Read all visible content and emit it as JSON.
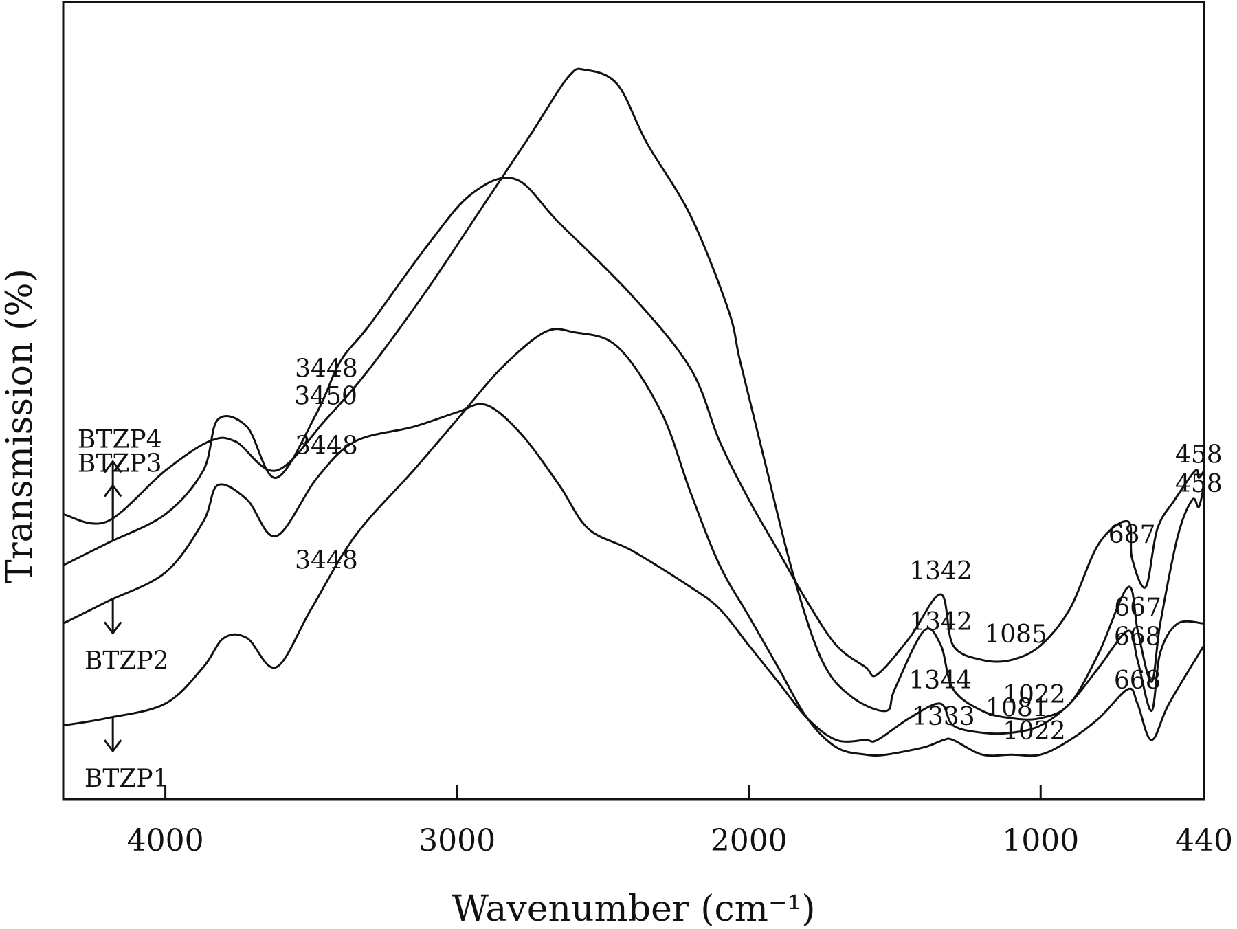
{
  "chart_data": {
    "type": "line",
    "xlabel": "Wavenumber (cm⁻¹)",
    "ylabel": "Transmission (%)",
    "xlim": [
      4350,
      440
    ],
    "x_ticks": [
      "4000",
      "3000",
      "2000",
      "1000",
      "440"
    ],
    "x_tick_values": [
      4000,
      3000,
      2000,
      1000,
      440
    ],
    "grid": false,
    "legend": "none (series labelled beside curves with arrows)",
    "series": [
      {
        "name": "BTZP4",
        "x": [
          4350,
          4200,
          4000,
          3850,
          3760,
          3620,
          3450,
          3300,
          3100,
          2900,
          2750,
          2620,
          2560,
          2450,
          2350,
          2200,
          2070,
          2030,
          1950,
          1850,
          1750,
          1650,
          1530,
          1500,
          1400,
          1342,
          1300,
          1200,
          1100,
          1000,
          900,
          800,
          700,
          667,
          620,
          590,
          530,
          480,
          458,
          440
        ],
        "y": [
          0.36,
          0.35,
          0.42,
          0.46,
          0.46,
          0.42,
          0.49,
          0.56,
          0.67,
          0.79,
          0.88,
          0.96,
          0.97,
          0.95,
          0.87,
          0.77,
          0.64,
          0.57,
          0.44,
          0.28,
          0.16,
          0.11,
          0.09,
          0.12,
          0.2,
          0.18,
          0.12,
          0.09,
          0.08,
          0.08,
          0.1,
          0.17,
          0.26,
          0.2,
          0.13,
          0.21,
          0.33,
          0.38,
          0.37,
          0.4
        ]
      },
      {
        "name": "BTZP3",
        "x": [
          4350,
          4200,
          4000,
          3870,
          3820,
          3720,
          3620,
          3480,
          3400,
          3300,
          3100,
          2950,
          2800,
          2650,
          2400,
          2200,
          2100,
          2000,
          1900,
          1800,
          1700,
          1600,
          1560,
          1450,
          1342,
          1300,
          1200,
          1100,
          1000,
          900,
          800,
          700,
          687,
          640,
          600,
          540,
          470,
          458,
          440
        ],
        "y": [
          0.29,
          0.32,
          0.36,
          0.42,
          0.49,
          0.48,
          0.41,
          0.5,
          0.57,
          0.62,
          0.73,
          0.8,
          0.82,
          0.76,
          0.66,
          0.56,
          0.46,
          0.38,
          0.31,
          0.24,
          0.18,
          0.15,
          0.14,
          0.19,
          0.25,
          0.18,
          0.16,
          0.16,
          0.18,
          0.23,
          0.32,
          0.35,
          0.3,
          0.26,
          0.34,
          0.38,
          0.42,
          0.41,
          0.42
        ]
      },
      {
        "name": "BTZP2",
        "x": [
          4350,
          4200,
          4000,
          3870,
          3820,
          3720,
          3620,
          3480,
          3350,
          3150,
          3000,
          2900,
          2780,
          2650,
          2550,
          2400,
          2200,
          2100,
          2000,
          1900,
          1800,
          1700,
          1600,
          1560,
          1450,
          1344,
          1300,
          1200,
          1100,
          1000,
          900,
          800,
          700,
          668,
          620,
          590,
          530,
          440
        ],
        "y": [
          0.21,
          0.24,
          0.28,
          0.35,
          0.4,
          0.38,
          0.33,
          0.41,
          0.46,
          0.48,
          0.5,
          0.51,
          0.47,
          0.4,
          0.34,
          0.31,
          0.26,
          0.23,
          0.18,
          0.13,
          0.08,
          0.05,
          0.05,
          0.05,
          0.08,
          0.1,
          0.07,
          0.06,
          0.06,
          0.07,
          0.1,
          0.15,
          0.2,
          0.16,
          0.09,
          0.17,
          0.21,
          0.21
        ]
      },
      {
        "name": "BTZP1",
        "x": [
          4350,
          4200,
          4000,
          3870,
          3800,
          3720,
          3620,
          3500,
          3350,
          3150,
          3000,
          2850,
          2700,
          2600,
          2450,
          2300,
          2200,
          2100,
          2000,
          1900,
          1800,
          1700,
          1600,
          1530,
          1400,
          1333,
          1300,
          1200,
          1100,
          1000,
          900,
          800,
          700,
          668,
          620,
          560,
          440
        ],
        "y": [
          0.07,
          0.08,
          0.1,
          0.15,
          0.19,
          0.19,
          0.15,
          0.23,
          0.33,
          0.42,
          0.49,
          0.56,
          0.61,
          0.61,
          0.59,
          0.5,
          0.39,
          0.29,
          0.22,
          0.15,
          0.08,
          0.04,
          0.03,
          0.03,
          0.04,
          0.05,
          0.05,
          0.03,
          0.03,
          0.03,
          0.05,
          0.08,
          0.12,
          0.1,
          0.05,
          0.1,
          0.18
        ]
      }
    ],
    "annotations": [
      {
        "series": "BTZP4",
        "label": "3450",
        "x": 3450
      },
      {
        "series": "BTZP4",
        "label": "1342",
        "x": 1342
      },
      {
        "series": "BTZP4",
        "label": "1022",
        "x": 1022
      },
      {
        "series": "BTZP4",
        "label": "667",
        "x": 667
      },
      {
        "series": "BTZP4",
        "label": "458",
        "x": 458
      },
      {
        "series": "BTZP3",
        "label": "3448",
        "x": 3448
      },
      {
        "series": "BTZP3",
        "label": "1342",
        "x": 1342
      },
      {
        "series": "BTZP3",
        "label": "1085",
        "x": 1085
      },
      {
        "series": "BTZP3",
        "label": "687",
        "x": 687
      },
      {
        "series": "BTZP3",
        "label": "458",
        "x": 458
      },
      {
        "series": "BTZP2",
        "label": "3448",
        "x": 3448
      },
      {
        "series": "BTZP2",
        "label": "1344",
        "x": 1344
      },
      {
        "series": "BTZP2",
        "label": "1081",
        "x": 1081
      },
      {
        "series": "BTZP2",
        "label": "668",
        "x": 668
      },
      {
        "series": "BTZP1",
        "label": "3448",
        "x": 3448
      },
      {
        "series": "BTZP1",
        "label": "1333",
        "x": 1333
      },
      {
        "series": "BTZP1",
        "label": "1022",
        "x": 1022
      },
      {
        "series": "BTZP1",
        "label": "668",
        "x": 668
      }
    ]
  }
}
